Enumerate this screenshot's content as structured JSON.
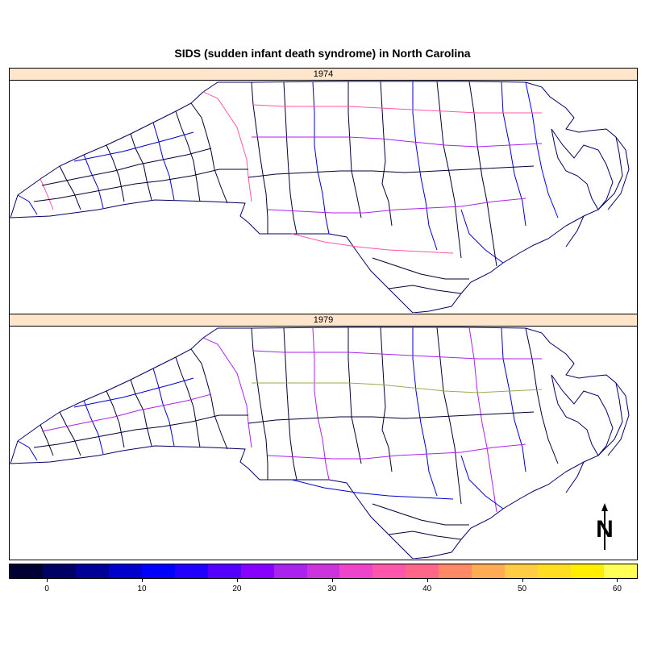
{
  "title": "SIDS (sudden infant death syndrome) in North Carolina",
  "panels": [
    {
      "label": "1974"
    },
    {
      "label": "1979"
    }
  ],
  "colorkey": {
    "min": -4,
    "max": 62,
    "colors": [
      "#000033",
      "#000066",
      "#000099",
      "#0000cc",
      "#0000ff",
      "#2200ff",
      "#5500ff",
      "#8800ff",
      "#aa22ee",
      "#cc33dd",
      "#ee44cc",
      "#ff55aa",
      "#ff6688",
      "#ff8866",
      "#ffaa55",
      "#ffcc44",
      "#ffdd22",
      "#ffee00",
      "#ffff55"
    ],
    "ticks": [
      "0",
      "10",
      "20",
      "30",
      "40",
      "50",
      "60"
    ]
  },
  "north_arrow": {
    "label": "N"
  },
  "map_data": {
    "region": "North Carolina",
    "variable": "SIDS",
    "years": [
      "1974",
      "1979"
    ],
    "feature_type": "county polygons",
    "highlight_colors": {
      "low": "#000066",
      "mid": "#0000ff",
      "upper_mid": "#aa22ee",
      "high": "#ff55aa",
      "highest": "#99aa55"
    }
  }
}
